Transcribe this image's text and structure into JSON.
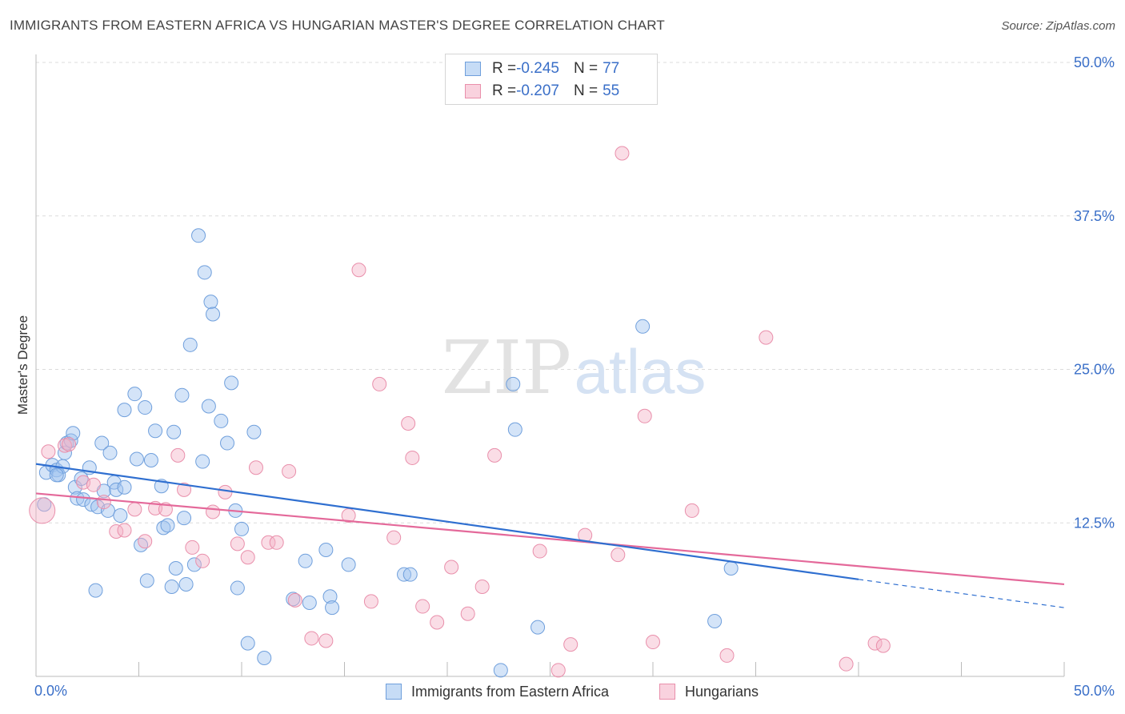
{
  "title": "IMMIGRANTS FROM EASTERN AFRICA VS HUNGARIAN MASTER'S DEGREE CORRELATION CHART",
  "source": "Source: ZipAtlas.com",
  "watermark": {
    "zip": "ZIP",
    "atlas": "atlas"
  },
  "legend_top": {
    "rows": [
      {
        "r_label": "R = ",
        "r_value": "-0.245",
        "n_label": "N = ",
        "n_value": "77"
      },
      {
        "r_label": "R = ",
        "r_value": "-0.207",
        "n_label": "N = ",
        "n_value": "55"
      }
    ]
  },
  "legend_bottom": {
    "series1": "Immigrants from Eastern Africa",
    "series2": "Hungarians"
  },
  "colors": {
    "blue_fill": "rgba(160,196,240,0.45)",
    "blue_stroke": "#6f9fdc",
    "blue_line": "#2f6fd0",
    "pink_fill": "rgba(245,180,200,0.45)",
    "pink_stroke": "#e98fab",
    "pink_line": "#e4699a",
    "axis_text": "#3a6fc8"
  },
  "chart_data": {
    "type": "scatter",
    "ylabel": "Master's Degree",
    "xlim": [
      0,
      50
    ],
    "ylim": [
      0,
      50
    ],
    "x_tick_labels": [
      "0.0%",
      "50.0%"
    ],
    "y_ticks": [
      12.5,
      25.0,
      37.5,
      50.0
    ],
    "y_tick_labels": [
      "12.5%",
      "25.0%",
      "37.5%",
      "50.0%"
    ],
    "series": [
      {
        "name": "Immigrants from Eastern Africa",
        "r": -0.245,
        "n": 77,
        "trend": {
          "x0": 0,
          "y0": 17.3,
          "x1": 40,
          "y1": 7.9,
          "dash_to": 50,
          "dash_y": 5.6
        },
        "points": [
          [
            0.5,
            16.6
          ],
          [
            0.8,
            17.2
          ],
          [
            1.0,
            16.8
          ],
          [
            1.1,
            16.4
          ],
          [
            1.3,
            17.1
          ],
          [
            1.4,
            18.2
          ],
          [
            1.5,
            19.0
          ],
          [
            1.7,
            19.2
          ],
          [
            1.8,
            19.8
          ],
          [
            1.9,
            15.4
          ],
          [
            2.0,
            14.5
          ],
          [
            2.2,
            16.1
          ],
          [
            2.3,
            14.4
          ],
          [
            2.6,
            17.0
          ],
          [
            2.7,
            14.0
          ],
          [
            3.0,
            13.8
          ],
          [
            3.2,
            19.0
          ],
          [
            3.3,
            15.1
          ],
          [
            3.5,
            13.5
          ],
          [
            3.6,
            18.2
          ],
          [
            3.8,
            15.8
          ],
          [
            3.9,
            15.2
          ],
          [
            4.1,
            13.1
          ],
          [
            4.3,
            15.4
          ],
          [
            4.8,
            23.0
          ],
          [
            4.9,
            17.7
          ],
          [
            5.1,
            10.7
          ],
          [
            4.3,
            21.7
          ],
          [
            5.3,
            21.9
          ],
          [
            5.6,
            17.6
          ],
          [
            5.8,
            20.0
          ],
          [
            5.4,
            7.8
          ],
          [
            6.1,
            15.5
          ],
          [
            6.2,
            12.1
          ],
          [
            6.4,
            12.3
          ],
          [
            6.6,
            7.3
          ],
          [
            6.8,
            8.8
          ],
          [
            6.7,
            19.9
          ],
          [
            7.1,
            22.9
          ],
          [
            7.2,
            12.9
          ],
          [
            7.5,
            27.0
          ],
          [
            7.7,
            9.1
          ],
          [
            7.9,
            35.9
          ],
          [
            8.2,
            32.9
          ],
          [
            8.5,
            30.5
          ],
          [
            8.6,
            29.5
          ],
          [
            8.1,
            17.5
          ],
          [
            8.4,
            22.0
          ],
          [
            9.0,
            20.8
          ],
          [
            9.3,
            19.0
          ],
          [
            9.5,
            23.9
          ],
          [
            9.7,
            13.5
          ],
          [
            10.0,
            12.0
          ],
          [
            10.3,
            2.7
          ],
          [
            10.6,
            19.9
          ],
          [
            11.1,
            1.5
          ],
          [
            12.5,
            6.3
          ],
          [
            13.1,
            9.4
          ],
          [
            13.3,
            6.0
          ],
          [
            14.1,
            10.3
          ],
          [
            14.3,
            6.5
          ],
          [
            14.4,
            5.6
          ],
          [
            15.2,
            9.1
          ],
          [
            17.9,
            8.3
          ],
          [
            18.2,
            8.3
          ],
          [
            9.8,
            7.2
          ],
          [
            7.3,
            7.5
          ],
          [
            1.0,
            16.4
          ],
          [
            0.4,
            14.0
          ],
          [
            2.9,
            7.0
          ],
          [
            23.2,
            23.8
          ],
          [
            23.3,
            20.1
          ],
          [
            24.4,
            4.0
          ],
          [
            29.5,
            28.5
          ],
          [
            33.0,
            4.5
          ],
          [
            33.8,
            8.8
          ],
          [
            22.6,
            0.5
          ]
        ]
      },
      {
        "name": "Hungarians",
        "r": -0.207,
        "n": 55,
        "trend": {
          "x0": 0,
          "y0": 14.9,
          "x1": 50,
          "y1": 7.5
        },
        "points": [
          [
            0.3,
            13.5
          ],
          [
            0.6,
            18.3
          ],
          [
            1.4,
            18.8
          ],
          [
            1.6,
            18.9
          ],
          [
            2.3,
            15.8
          ],
          [
            2.8,
            15.6
          ],
          [
            3.3,
            14.2
          ],
          [
            3.9,
            11.8
          ],
          [
            4.3,
            11.9
          ],
          [
            4.8,
            13.6
          ],
          [
            5.3,
            11.0
          ],
          [
            5.8,
            13.7
          ],
          [
            6.3,
            13.6
          ],
          [
            6.9,
            18.0
          ],
          [
            7.2,
            15.2
          ],
          [
            7.6,
            10.5
          ],
          [
            8.1,
            9.4
          ],
          [
            8.6,
            13.4
          ],
          [
            9.2,
            15.0
          ],
          [
            9.8,
            10.8
          ],
          [
            10.3,
            9.7
          ],
          [
            10.7,
            17.0
          ],
          [
            11.3,
            10.9
          ],
          [
            11.7,
            10.9
          ],
          [
            12.3,
            16.7
          ],
          [
            12.6,
            6.2
          ],
          [
            13.4,
            3.1
          ],
          [
            14.1,
            2.9
          ],
          [
            15.2,
            13.1
          ],
          [
            15.7,
            33.1
          ],
          [
            16.3,
            6.1
          ],
          [
            16.7,
            23.8
          ],
          [
            17.4,
            11.3
          ],
          [
            18.1,
            20.6
          ],
          [
            18.3,
            17.8
          ],
          [
            18.8,
            5.7
          ],
          [
            19.5,
            4.4
          ],
          [
            20.2,
            8.9
          ],
          [
            21.0,
            5.1
          ],
          [
            21.7,
            7.3
          ],
          [
            22.3,
            18.0
          ],
          [
            24.5,
            10.2
          ],
          [
            25.4,
            0.5
          ],
          [
            26.0,
            2.6
          ],
          [
            26.7,
            11.5
          ],
          [
            28.3,
            9.9
          ],
          [
            28.5,
            42.6
          ],
          [
            30.0,
            2.8
          ],
          [
            29.6,
            21.2
          ],
          [
            31.9,
            13.5
          ],
          [
            33.6,
            1.7
          ],
          [
            35.5,
            27.6
          ],
          [
            39.4,
            1.0
          ],
          [
            40.8,
            2.7
          ],
          [
            41.2,
            2.5
          ]
        ]
      }
    ]
  }
}
